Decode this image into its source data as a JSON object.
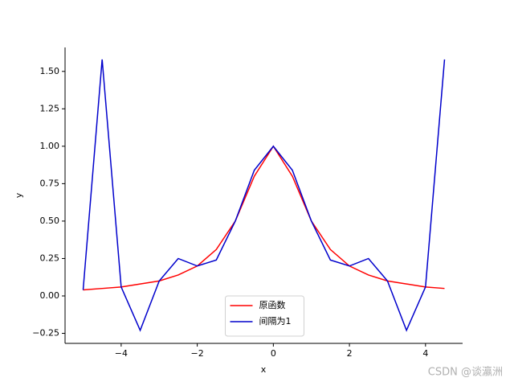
{
  "chart_data": {
    "type": "line",
    "xlabel": "x",
    "ylabel": "y",
    "xlim": [
      -5.475,
      4.975
    ],
    "ylim": [
      -0.317,
      1.66
    ],
    "xticks": [
      {
        "value": -4,
        "label": "−4"
      },
      {
        "value": -2,
        "label": "−2"
      },
      0,
      2,
      4
    ],
    "yticks": [
      {
        "value": -0.25,
        "label": "−0.25"
      },
      {
        "value": 0,
        "label": "0.00"
      },
      0.25,
      {
        "value": 0.5,
        "label": "0.50"
      },
      0.75,
      {
        "value": 1,
        "label": "1.00"
      },
      1.25,
      {
        "value": 1.5,
        "label": "1.50"
      }
    ],
    "grid": false,
    "legend": "lower center",
    "series": [
      {
        "name": "原函数",
        "color": "#ff0000",
        "x": [
          -5,
          -4.5,
          -4,
          -3.5,
          -3,
          -2.5,
          -2,
          -1.5,
          -1,
          -0.5,
          0,
          0.5,
          1,
          1.5,
          2,
          2.5,
          3,
          3.5,
          4,
          4.5
        ],
        "values": [
          0.04,
          0.05,
          0.06,
          0.08,
          0.1,
          0.14,
          0.2,
          0.31,
          0.5,
          0.8,
          1.0,
          0.8,
          0.5,
          0.31,
          0.2,
          0.14,
          0.1,
          0.08,
          0.06,
          0.05
        ]
      },
      {
        "name": "间隔为1",
        "color": "#0000cc",
        "x": [
          -5,
          -4.5,
          -4,
          -3.5,
          -3,
          -2.5,
          -2,
          -1.5,
          -1,
          -0.5,
          0,
          0.5,
          1,
          1.5,
          2,
          2.5,
          3,
          3.5,
          4,
          4.5
        ],
        "values": [
          0.04,
          1.58,
          0.06,
          -0.23,
          0.1,
          0.25,
          0.2,
          0.24,
          0.5,
          0.84,
          1.0,
          0.84,
          0.5,
          0.24,
          0.2,
          0.25,
          0.1,
          -0.23,
          0.06,
          1.58
        ]
      }
    ],
    "watermark": "CSDN @谈瀛洲"
  }
}
